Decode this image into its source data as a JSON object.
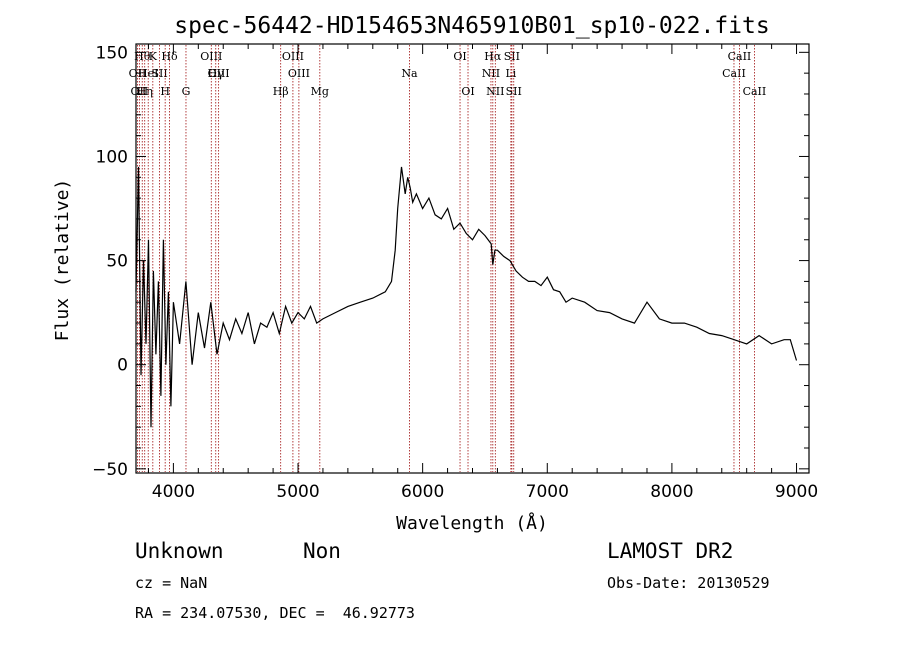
{
  "chart_data": {
    "type": "line",
    "title": "spec-56442-HD154653N465910B01_sp10-022.fits",
    "xlabel": "Wavelength (Å)",
    "ylabel": "Flux (relative)",
    "xlim": [
      3700,
      9100
    ],
    "ylim": [
      -52,
      154
    ],
    "xticks": [
      4000,
      5000,
      6000,
      7000,
      8000,
      9000
    ],
    "xtick_labels": [
      "4000",
      "5000",
      "6000",
      "7000",
      "8000",
      "9000"
    ],
    "yticks": [
      -50,
      0,
      50,
      100,
      150
    ],
    "ytick_labels": [
      "−50",
      "0",
      "50",
      "100",
      "150"
    ],
    "grid": false,
    "series": [
      {
        "color": "#000000",
        "x": [
          3700,
          3720,
          3740,
          3760,
          3780,
          3800,
          3820,
          3840,
          3860,
          3880,
          3900,
          3920,
          3940,
          3960,
          3980,
          4000,
          4050,
          4100,
          4150,
          4200,
          4250,
          4300,
          4350,
          4400,
          4450,
          4500,
          4550,
          4600,
          4650,
          4700,
          4750,
          4800,
          4850,
          4900,
          4950,
          5000,
          5050,
          5100,
          5150,
          5200,
          5300,
          5400,
          5500,
          5600,
          5700,
          5750,
          5780,
          5800,
          5830,
          5860,
          5880,
          5900,
          5920,
          5950,
          6000,
          6050,
          6100,
          6150,
          6200,
          6250,
          6300,
          6350,
          6400,
          6450,
          6500,
          6550,
          6563,
          6580,
          6600,
          6650,
          6700,
          6750,
          6800,
          6850,
          6900,
          6950,
          7000,
          7050,
          7100,
          7150,
          7200,
          7300,
          7400,
          7500,
          7600,
          7700,
          7800,
          7900,
          8000,
          8100,
          8200,
          8300,
          8400,
          8500,
          8600,
          8700,
          8800,
          8900,
          8950,
          9000
        ],
        "y": [
          35,
          95,
          -5,
          50,
          10,
          60,
          -30,
          45,
          5,
          40,
          -15,
          60,
          0,
          35,
          -20,
          30,
          10,
          40,
          0,
          25,
          8,
          30,
          5,
          20,
          12,
          22,
          15,
          25,
          10,
          20,
          18,
          25,
          15,
          28,
          20,
          25,
          22,
          28,
          20,
          22,
          25,
          28,
          30,
          32,
          35,
          40,
          55,
          75,
          95,
          82,
          90,
          85,
          78,
          82,
          75,
          80,
          72,
          70,
          75,
          65,
          68,
          63,
          60,
          65,
          62,
          58,
          48,
          55,
          55,
          52,
          50,
          45,
          42,
          40,
          40,
          38,
          42,
          36,
          35,
          30,
          32,
          30,
          26,
          25,
          22,
          20,
          30,
          22,
          20,
          20,
          18,
          15,
          14,
          12,
          10,
          14,
          10,
          12,
          12,
          2
        ]
      }
    ],
    "lines": [
      {
        "x": 3712,
        "label": "OII",
        "row": 1
      },
      {
        "x": 3727,
        "label": "OII",
        "row": 2
      },
      {
        "x": 3750,
        "label": "Hθ",
        "row": 0
      },
      {
        "x": 3770,
        "label": "Hη",
        "row": 2
      },
      {
        "x": 3798,
        "label": "HeI",
        "row": 1
      },
      {
        "x": 3835,
        "label": "K",
        "row": 0
      },
      {
        "x": 3889,
        "label": "SII",
        "row": 1
      },
      {
        "x": 3934,
        "label": "H",
        "row": 2
      },
      {
        "x": 3969,
        "label": "Hδ",
        "row": 0
      },
      {
        "x": 4101,
        "label": "G",
        "row": 2
      },
      {
        "x": 4304,
        "label": "OIII",
        "row": 0
      },
      {
        "x": 4340,
        "label": "Hγ",
        "row": 1
      },
      {
        "x": 4363,
        "label": "OIII",
        "row": 1
      },
      {
        "x": 4861,
        "label": "Hβ",
        "row": 2
      },
      {
        "x": 4959,
        "label": "OIII",
        "row": 0
      },
      {
        "x": 5007,
        "label": "OIII",
        "row": 1
      },
      {
        "x": 5175,
        "label": "Mg",
        "row": 2
      },
      {
        "x": 5894,
        "label": "Na",
        "row": 1
      },
      {
        "x": 6300,
        "label": "OI",
        "row": 0
      },
      {
        "x": 6364,
        "label": "OI",
        "row": 2
      },
      {
        "x": 6548,
        "label": "NII",
        "row": 1
      },
      {
        "x": 6563,
        "label": "Hα",
        "row": 0
      },
      {
        "x": 6583,
        "label": "NII",
        "row": 2
      },
      {
        "x": 6708,
        "label": "Li",
        "row": 1
      },
      {
        "x": 6716,
        "label": "SII",
        "row": 0
      },
      {
        "x": 6731,
        "label": "SII",
        "row": 2
      },
      {
        "x": 8498,
        "label": "CaII",
        "row": 1
      },
      {
        "x": 8542,
        "label": "CaII",
        "row": 0
      },
      {
        "x": 8662,
        "label": "CaII",
        "row": 2
      }
    ]
  },
  "info": {
    "class": "Unknown",
    "subclass": "Non",
    "cz": "cz = NaN",
    "coords": "RA = 234.07530, DEC =  46.92773",
    "survey": "LAMOST DR2",
    "obs_date": "Obs-Date: 20130529"
  }
}
